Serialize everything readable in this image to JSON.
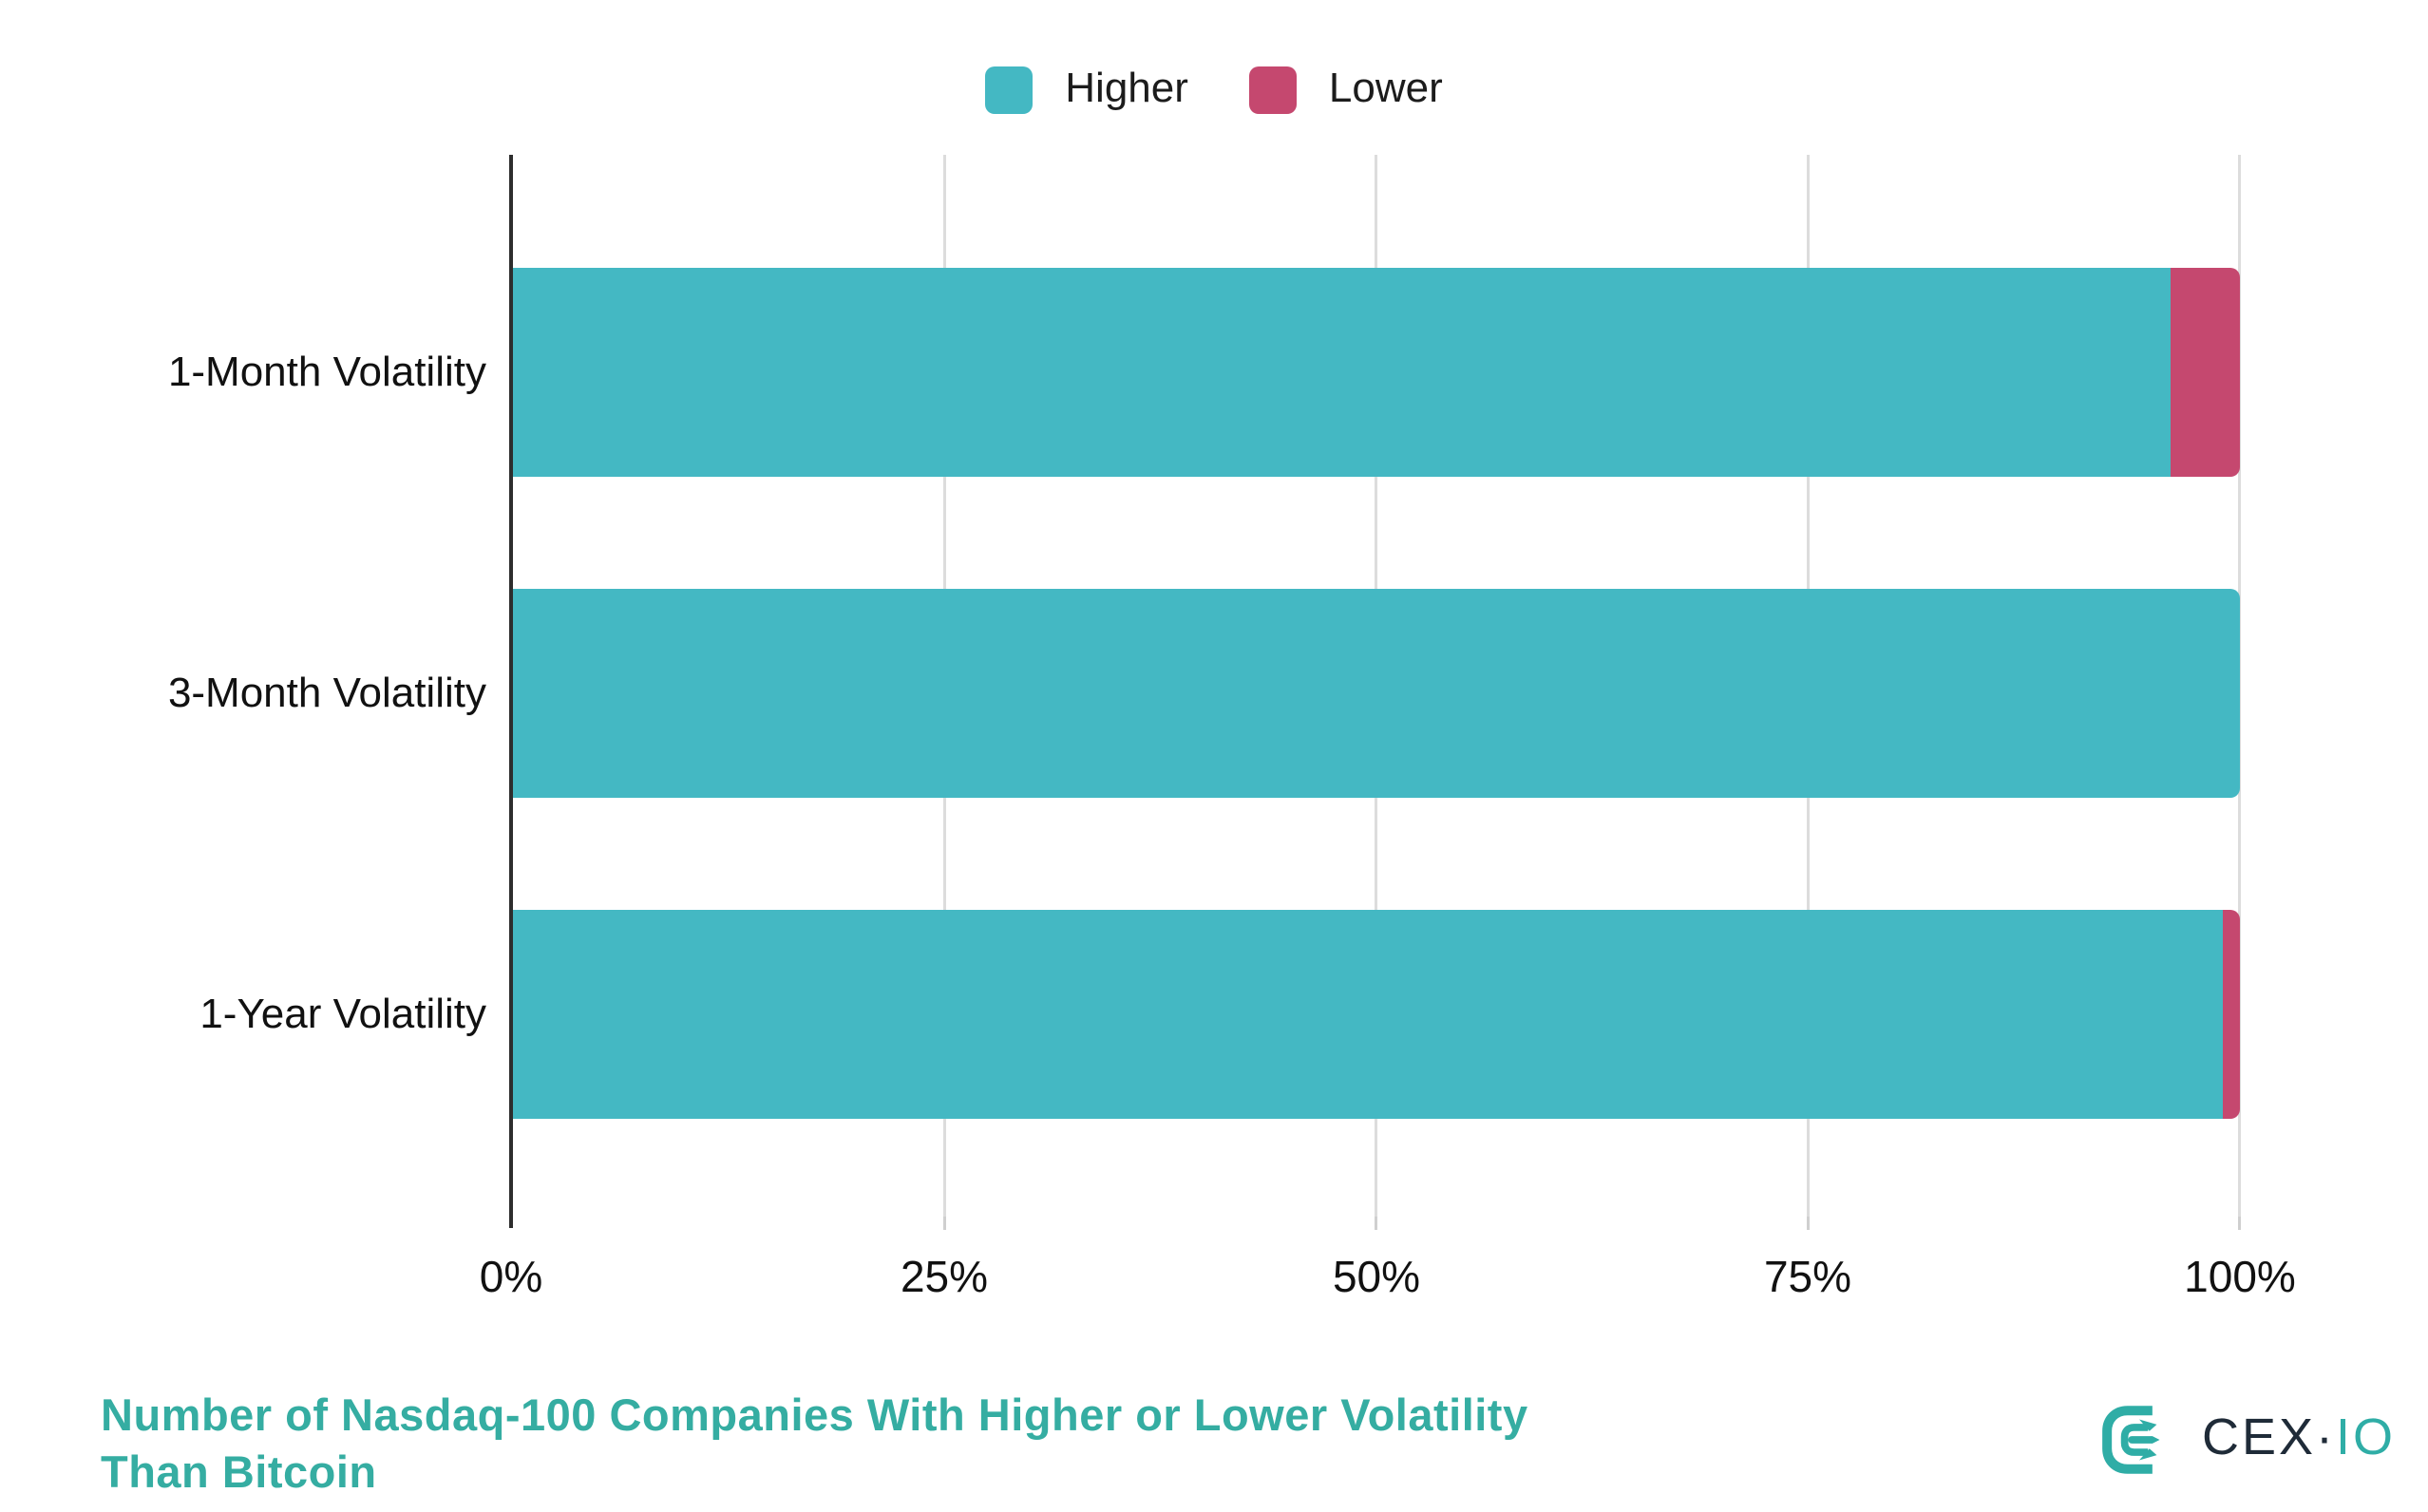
{
  "legend": {
    "items": [
      {
        "label": "Higher",
        "color": "#44b8c3"
      },
      {
        "label": "Lower",
        "color": "#c5486f"
      }
    ]
  },
  "chart_data": {
    "type": "bar",
    "orientation": "horizontal",
    "stacked": true,
    "unit": "percent",
    "title": "Number of Nasdaq-100 Companies With Higher or Lower Volatility Than Bitcoin",
    "categories": [
      "1-Month Volatility",
      "3-Month Volatility",
      "1-Year Volatility"
    ],
    "series": [
      {
        "name": "Higher",
        "color": "#44b8c3",
        "values": [
          96,
          100,
          99
        ]
      },
      {
        "name": "Lower",
        "color": "#c5486f",
        "values": [
          4,
          0,
          1
        ]
      }
    ],
    "xlim": [
      0,
      100
    ],
    "x_ticks": [
      {
        "value": 0,
        "label": "0%"
      },
      {
        "value": 25,
        "label": "25%"
      },
      {
        "value": 50,
        "label": "50%"
      },
      {
        "value": 75,
        "label": "75%"
      },
      {
        "value": 100,
        "label": "100%"
      }
    ],
    "grid": true,
    "gridline_color": "#dcdcdc",
    "axis_color": "#2d2d2d",
    "legend_position": "top"
  },
  "title": {
    "line1": "Number of Nasdaq-100 Companies With Higher or Lower Volatility",
    "line2": "Than Bitcoin",
    "color": "#35ada2"
  },
  "branding": {
    "logo_name": "CEX.IO",
    "text_dark": "CEX·",
    "text_teal": "IO",
    "color_teal": "#2fada6",
    "color_dark": "#1f2b38"
  }
}
